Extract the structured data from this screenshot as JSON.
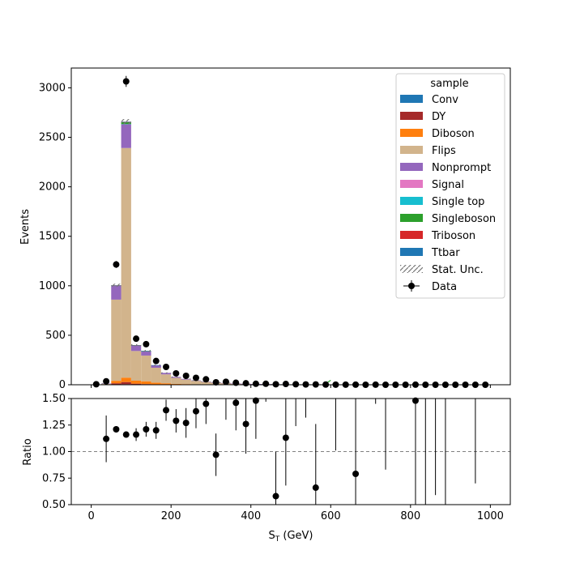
{
  "chart_data": {
    "type": "bar",
    "stacked": true,
    "xlabel_main": "S",
    "xlabel_sub": "T",
    "xlabel_unit": " (GeV)",
    "ylabel_top": "Events",
    "ylabel_bottom": "Ratio",
    "x_ticks": [
      "0",
      "200",
      "400",
      "600",
      "800",
      "1000"
    ],
    "y_ticks_top": [
      "0",
      "500",
      "1000",
      "1500",
      "2000",
      "2500",
      "3000"
    ],
    "y_ticks_bottom": [
      "0.50",
      "0.75",
      "1.00",
      "1.25",
      "1.50"
    ],
    "xlim": [
      -50,
      1050
    ],
    "ylim_top": [
      0,
      3200
    ],
    "ylim_bottom": [
      0.5,
      1.5
    ],
    "ratio_reference": 1.0,
    "bin_edges": [
      0,
      25,
      50,
      75,
      100,
      125,
      150,
      175,
      200,
      225,
      250,
      275,
      300,
      325,
      350,
      375,
      400,
      425,
      450,
      475,
      500,
      525,
      550,
      575,
      600,
      625,
      650,
      675,
      700,
      725,
      750,
      775,
      800,
      825,
      850,
      875,
      900,
      925,
      950,
      975,
      1000
    ],
    "legend": {
      "title": "sample",
      "placement": "upper right",
      "entries": [
        "Conv",
        "DY",
        "Diboson",
        "Flips",
        "Nonprompt",
        "Signal",
        "Single top",
        "Singleboson",
        "Triboson",
        "Ttbar",
        "Stat. Unc.",
        "Data"
      ]
    },
    "series": [
      {
        "name": "Conv",
        "color": "#1f77b4",
        "values": [
          0,
          0,
          3,
          5,
          3,
          2,
          1,
          1,
          0,
          0,
          0,
          0,
          0,
          0,
          0,
          0,
          0,
          0,
          0,
          0,
          0,
          0,
          0,
          0,
          0,
          0,
          0,
          0,
          0,
          0,
          0,
          0,
          0,
          0,
          0,
          0,
          0,
          0,
          0,
          0
        ]
      },
      {
        "name": "DY",
        "color": "#a52a2a",
        "values": [
          0,
          1,
          12,
          22,
          8,
          5,
          3,
          2,
          1,
          1,
          0,
          0,
          0,
          0,
          0,
          0,
          0,
          0,
          0,
          0,
          0,
          0,
          0,
          0,
          0,
          0,
          0,
          0,
          0,
          0,
          0,
          0,
          0,
          0,
          0,
          0,
          0,
          0,
          0,
          0
        ]
      },
      {
        "name": "Diboson",
        "color": "#ff7f0e",
        "values": [
          0,
          2,
          25,
          45,
          30,
          28,
          18,
          12,
          8,
          6,
          4,
          3,
          2,
          2,
          1,
          1,
          1,
          1,
          0,
          0,
          0,
          0,
          0,
          0,
          0,
          0,
          0,
          0,
          0,
          0,
          0,
          0,
          0,
          0,
          0,
          0,
          0,
          0,
          0,
          0
        ]
      },
      {
        "name": "Flips",
        "color": "#d2b48c",
        "values": [
          0,
          8,
          820,
          2320,
          300,
          260,
          150,
          90,
          60,
          45,
          35,
          25,
          18,
          14,
          10,
          8,
          6,
          5,
          4,
          3,
          2,
          2,
          2,
          1,
          1,
          1,
          1,
          1,
          0,
          0,
          0,
          0,
          0,
          0,
          0,
          0,
          0,
          0,
          0,
          0
        ]
      },
      {
        "name": "Nonprompt",
        "color": "#9467bd",
        "values": [
          0,
          1,
          140,
          240,
          55,
          45,
          25,
          15,
          10,
          7,
          5,
          4,
          3,
          2,
          2,
          1,
          1,
          1,
          1,
          0,
          0,
          0,
          0,
          0,
          0,
          0,
          0,
          0,
          0,
          0,
          0,
          0,
          0,
          0,
          0,
          0,
          0,
          0,
          0,
          0
        ]
      },
      {
        "name": "Signal",
        "color": "#e377c2",
        "values": [
          0,
          0,
          0,
          1,
          0,
          0,
          0,
          0,
          0,
          0,
          0,
          0,
          0,
          0,
          0,
          0,
          0,
          0,
          0,
          0,
          0,
          0,
          0,
          0,
          0,
          0,
          0,
          0,
          0,
          0,
          0,
          0,
          0,
          0,
          0,
          0,
          0,
          0,
          0,
          0
        ]
      },
      {
        "name": "Single top",
        "color": "#17becf",
        "values": [
          0,
          0,
          0,
          1,
          0,
          0,
          0,
          0,
          0,
          0,
          0,
          0,
          0,
          0,
          0,
          0,
          0,
          0,
          0,
          0,
          0,
          0,
          0,
          0,
          0,
          0,
          0,
          0,
          0,
          0,
          0,
          0,
          0,
          0,
          0,
          0,
          0,
          0,
          0,
          0
        ]
      },
      {
        "name": "Singleboson",
        "color": "#2ca02c",
        "values": [
          0,
          0,
          2,
          20,
          1,
          1,
          0,
          0,
          0,
          0,
          0,
          0,
          0,
          0,
          0,
          0,
          0,
          0,
          0,
          0,
          0,
          0,
          0,
          0,
          0,
          0,
          0,
          0,
          0,
          0,
          0,
          0,
          0,
          0,
          0,
          0,
          0,
          0,
          0,
          0
        ]
      },
      {
        "name": "Triboson",
        "color": "#d62728",
        "values": [
          0,
          0,
          1,
          1,
          1,
          0,
          0,
          0,
          0,
          0,
          0,
          0,
          0,
          0,
          0,
          0,
          0,
          0,
          0,
          0,
          0,
          0,
          0,
          0,
          0,
          0,
          0,
          0,
          0,
          0,
          0,
          0,
          0,
          0,
          0,
          0,
          0,
          0,
          0,
          0
        ]
      },
      {
        "name": "Ttbar",
        "color": "#1f77b4",
        "values": [
          0,
          0,
          2,
          3,
          2,
          1,
          1,
          0,
          0,
          0,
          0,
          0,
          0,
          0,
          0,
          0,
          0,
          0,
          0,
          0,
          0,
          0,
          0,
          0,
          0,
          0,
          0,
          0,
          0,
          0,
          0,
          0,
          0,
          0,
          0,
          0,
          0,
          0,
          0,
          0
        ]
      }
    ],
    "data": {
      "name": "Data",
      "x": [
        12.5,
        37.5,
        62.5,
        87.5,
        112.5,
        137.5,
        162.5,
        187.5,
        212.5,
        237.5,
        262.5,
        287.5,
        312.5,
        337.5,
        362.5,
        387.5,
        412.5,
        437.5,
        462.5,
        487.5,
        512.5,
        537.5,
        562.5,
        587.5,
        612.5,
        637.5,
        662.5,
        687.5,
        712.5,
        737.5,
        762.5,
        787.5,
        812.5,
        837.5,
        862.5,
        887.5,
        912.5,
        937.5,
        962.5,
        987.5
      ],
      "y": [
        5,
        35,
        1215,
        3065,
        465,
        410,
        240,
        180,
        115,
        90,
        70,
        55,
        25,
        30,
        20,
        15,
        10,
        10,
        5,
        8,
        5,
        3,
        3,
        2,
        1,
        1,
        1,
        0,
        1,
        0,
        0,
        0,
        1,
        0,
        0,
        0,
        0,
        0,
        0,
        0
      ]
    },
    "ratio": {
      "x": [
        37.5,
        62.5,
        87.5,
        112.5,
        137.5,
        162.5,
        187.5,
        212.5,
        237.5,
        262.5,
        287.5,
        312.5,
        362.5,
        387.5,
        412.5,
        462.5,
        487.5,
        562.5,
        662.5,
        812.5
      ],
      "y": [
        1.12,
        1.21,
        1.16,
        1.16,
        1.21,
        1.2,
        1.39,
        1.29,
        1.27,
        1.38,
        1.45,
        0.97,
        1.46,
        1.26,
        1.48,
        0.58,
        1.13,
        0.66,
        0.79,
        1.48
      ],
      "err": [
        0.22,
        0.03,
        0.03,
        0.06,
        0.07,
        0.08,
        0.1,
        0.11,
        0.14,
        0.16,
        0.19,
        0.2,
        0.26,
        0.28,
        0.36,
        0.42,
        0.45,
        0.6,
        0.75,
        1.0
      ]
    },
    "ratio_extra_error_bars": [
      {
        "x": 337.5,
        "low": 1.3,
        "high": 1.5
      },
      {
        "x": 437.5,
        "low": 1.47,
        "high": 1.5
      },
      {
        "x": 512.5,
        "low": 1.24,
        "high": 1.5
      },
      {
        "x": 537.5,
        "low": 1.32,
        "high": 1.5
      },
      {
        "x": 612.5,
        "low": 1.01,
        "high": 1.5
      },
      {
        "x": 712.5,
        "low": 1.45,
        "high": 1.5
      },
      {
        "x": 737.5,
        "low": 0.83,
        "high": 1.5
      },
      {
        "x": 837.5,
        "low": 0.5,
        "high": 1.5
      },
      {
        "x": 862.5,
        "low": 0.59,
        "high": 1.5
      },
      {
        "x": 887.5,
        "low": 0.5,
        "high": 1.5
      },
      {
        "x": 962.5,
        "low": 0.7,
        "high": 1.5
      }
    ]
  }
}
